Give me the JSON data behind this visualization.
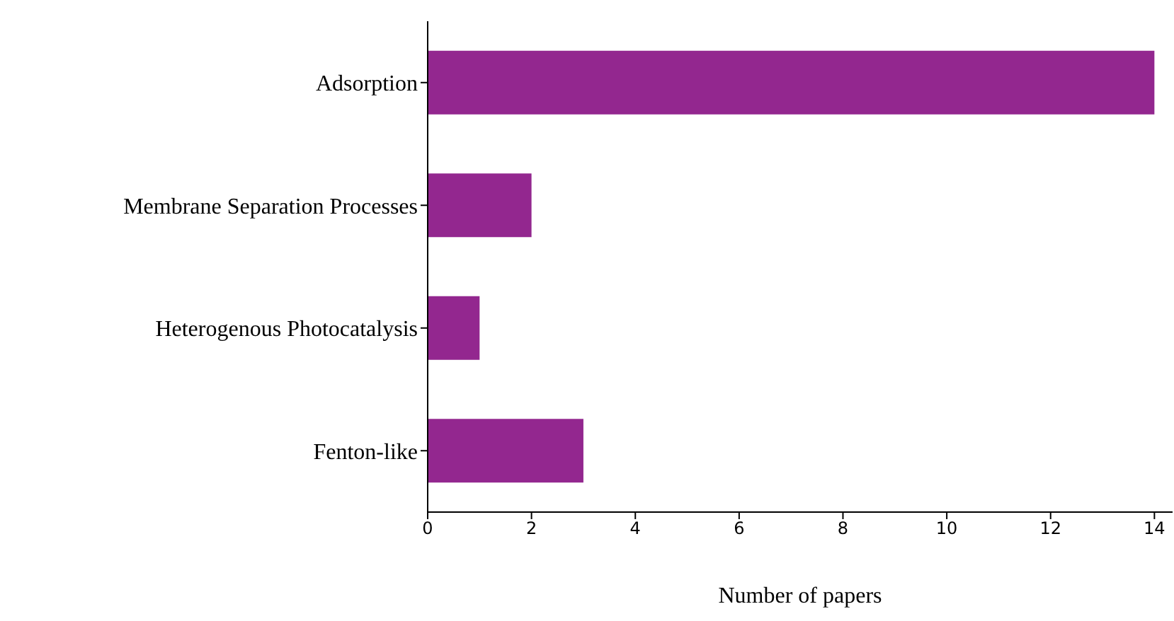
{
  "chart_data": {
    "type": "bar",
    "orientation": "horizontal",
    "xlabel": "Number of papers",
    "categories": [
      "Adsorption",
      "Membrane Separation Processes",
      "Heterogenous Photocatalysis",
      "Fenton-like"
    ],
    "values": [
      14,
      2,
      1,
      3
    ],
    "color": "#93278f",
    "xlim": [
      0,
      14.35
    ],
    "xticks": [
      0,
      2,
      4,
      6,
      8,
      10,
      12,
      14
    ],
    "grid": false,
    "legend": false
  }
}
